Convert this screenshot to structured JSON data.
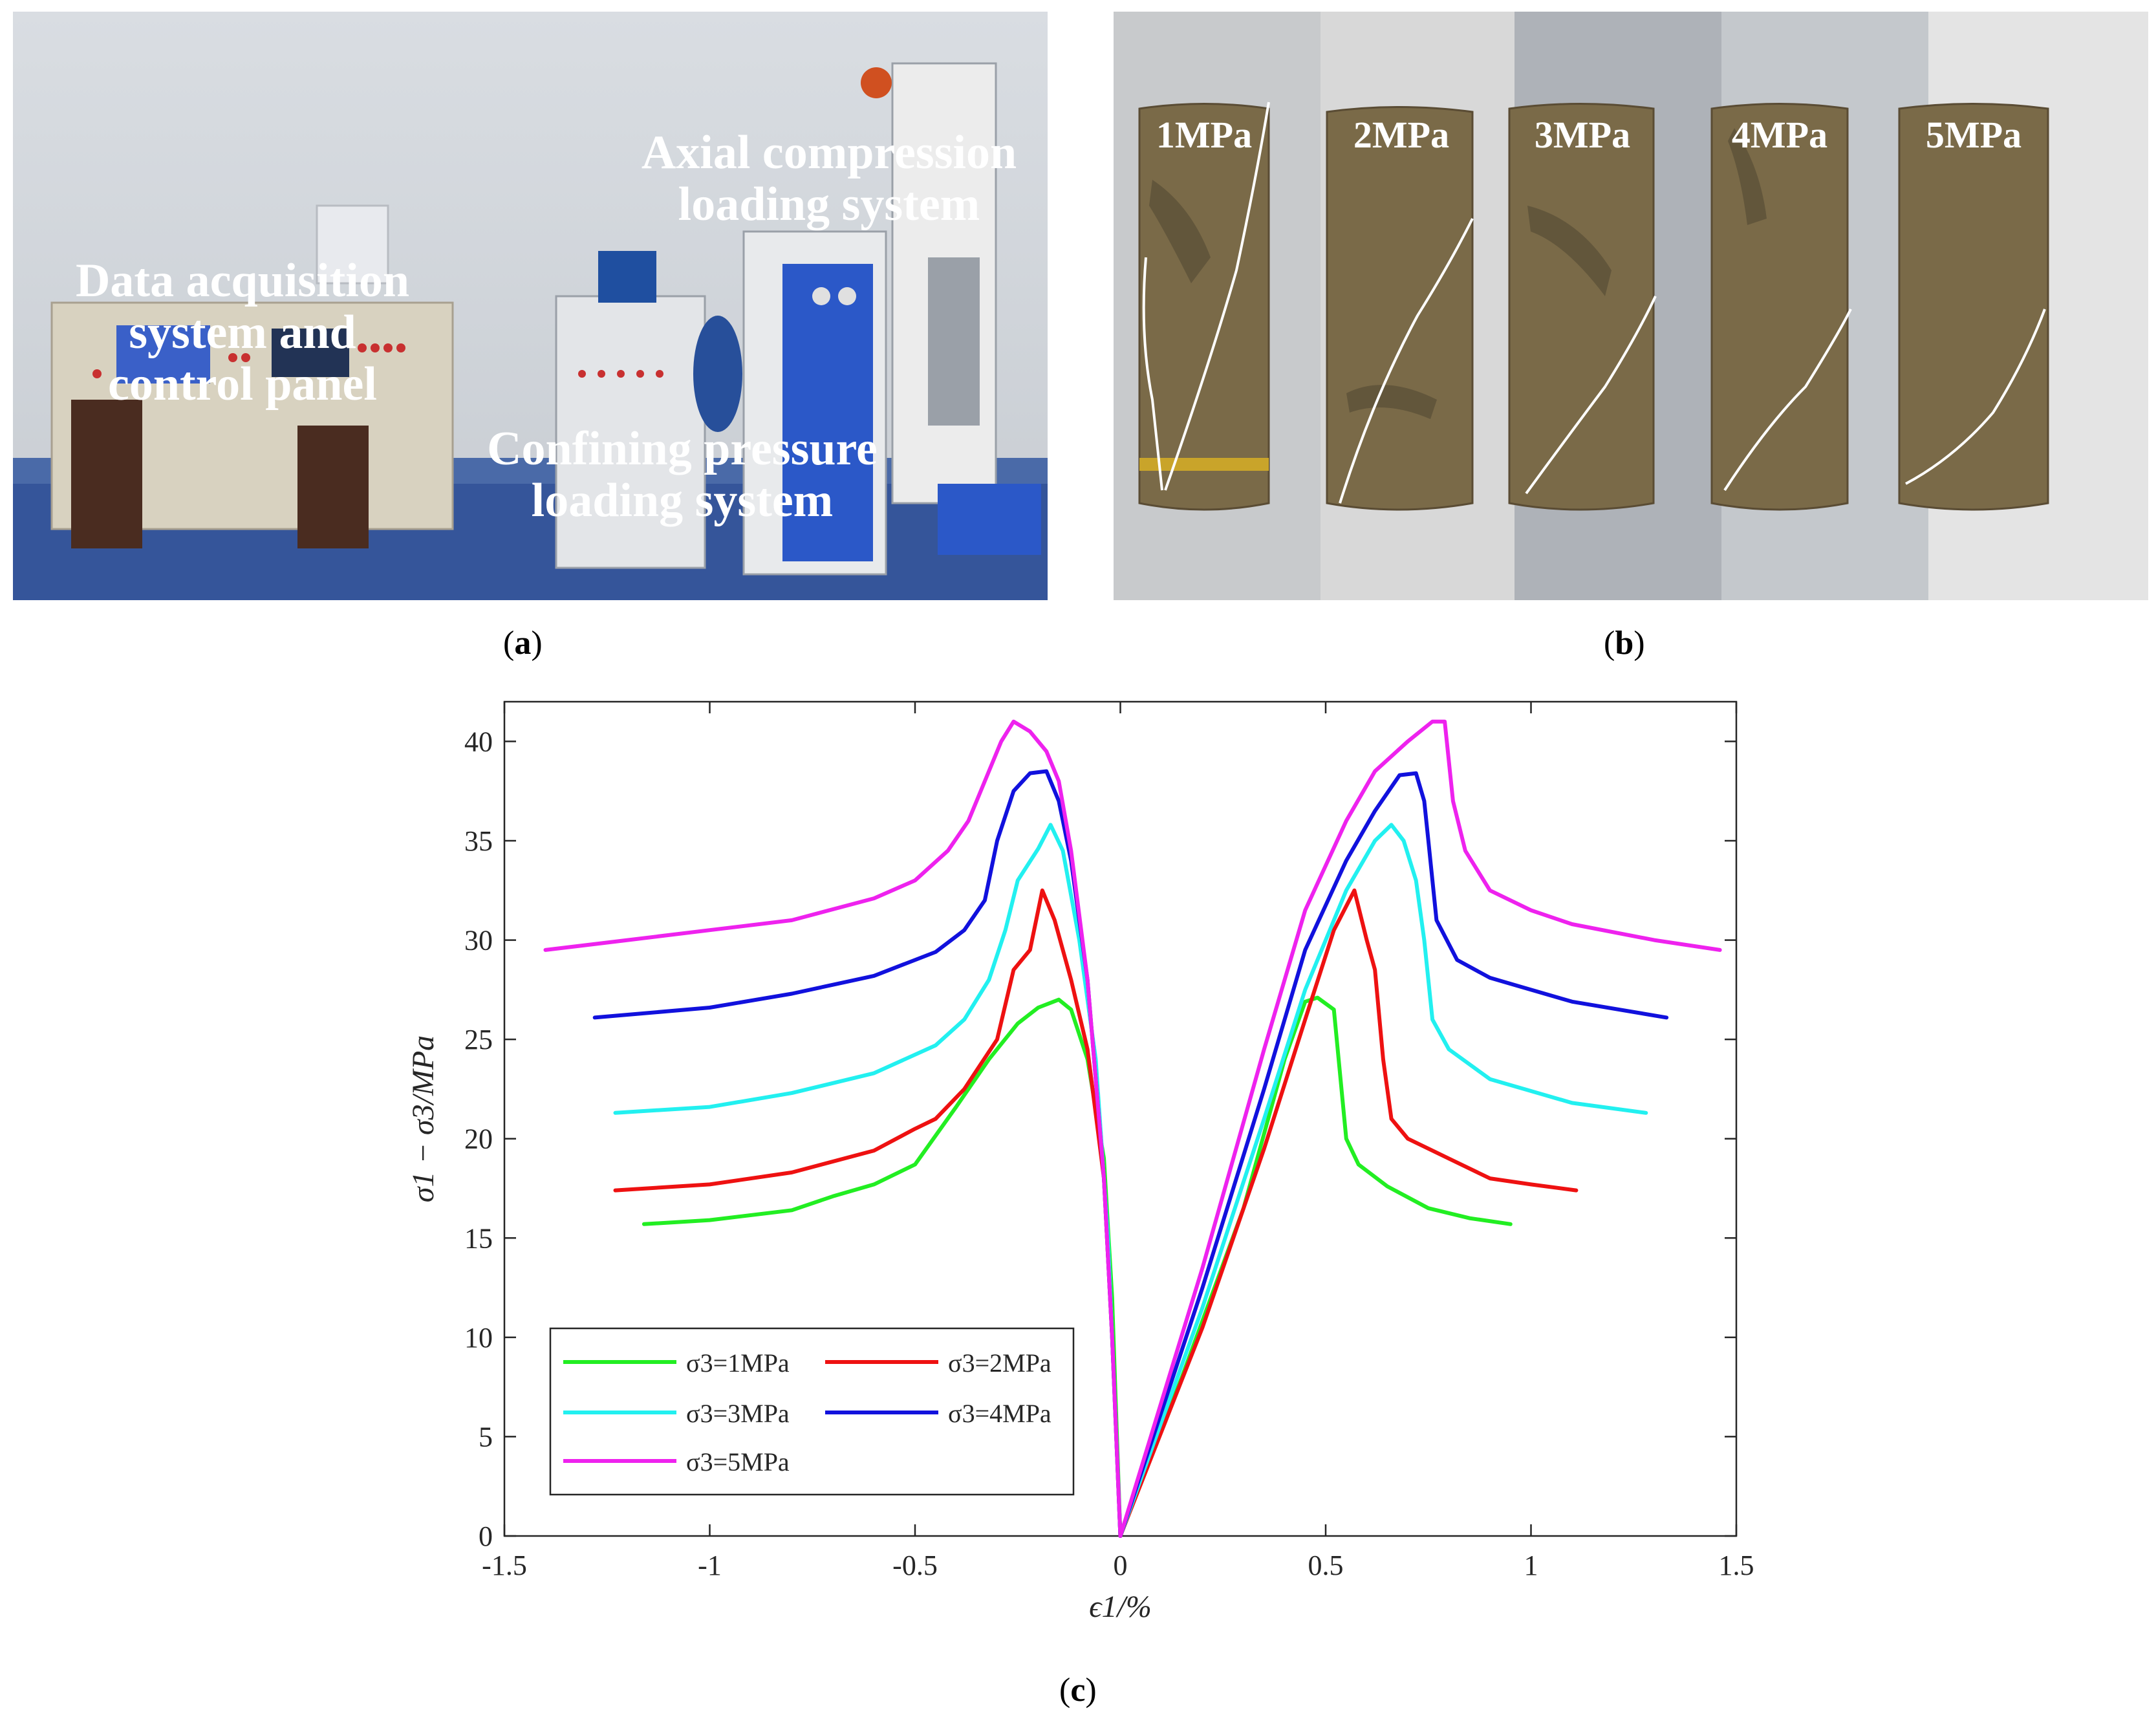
{
  "panels": {
    "a": {
      "caption_letter": "a",
      "labels": {
        "data_acq": [
          "Data acquisition",
          "system and",
          "control panel"
        ],
        "axial": [
          "Axial compression",
          "loading system"
        ],
        "confining": [
          "Confining pressure",
          "loading system"
        ]
      }
    },
    "b": {
      "caption_letter": "b",
      "specimens": [
        "1MPa",
        "2MPa",
        "3MPa",
        "4MPa",
        "5MPa"
      ]
    },
    "c": {
      "caption_letter": "c"
    }
  },
  "colors": {
    "s1": "#22ee22",
    "s2": "#ee1111",
    "s3": "#22f0f0",
    "s4": "#1111dd",
    "s5": "#ee22ee"
  },
  "chart_data": {
    "type": "line",
    "xlabel": "ϵ1/%",
    "ylabel": "σ1 − σ3/MPa",
    "xlim": [
      -1.5,
      1.5
    ],
    "ylim": [
      0,
      42
    ],
    "xticks": [
      "-1.5",
      "-1",
      "-0.5",
      "0",
      "0.5",
      "1",
      "1.5"
    ],
    "yticks": [
      "0",
      "5",
      "10",
      "15",
      "20",
      "25",
      "30",
      "35",
      "40"
    ],
    "legend_position": "bottom-left",
    "series": [
      {
        "name": "σ3=1MPa",
        "color_key": "s1",
        "points": [
          [
            -1.16,
            15.7
          ],
          [
            -1.0,
            15.9
          ],
          [
            -0.8,
            16.4
          ],
          [
            -0.7,
            17.1
          ],
          [
            -0.6,
            17.7
          ],
          [
            -0.5,
            18.7
          ],
          [
            -0.4,
            21.6
          ],
          [
            -0.32,
            24.0
          ],
          [
            -0.25,
            25.8
          ],
          [
            -0.2,
            26.6
          ],
          [
            -0.15,
            27.0
          ],
          [
            -0.12,
            26.5
          ],
          [
            -0.08,
            24.0
          ],
          [
            -0.04,
            19.0
          ],
          [
            -0.02,
            12.0
          ],
          [
            0,
            0
          ],
          [
            0.15,
            8.0
          ],
          [
            0.3,
            16.5
          ],
          [
            0.4,
            24.0
          ],
          [
            0.45,
            26.9
          ],
          [
            0.48,
            27.1
          ],
          [
            0.52,
            26.5
          ],
          [
            0.55,
            20.0
          ],
          [
            0.58,
            18.7
          ],
          [
            0.65,
            17.6
          ],
          [
            0.75,
            16.5
          ],
          [
            0.85,
            16.0
          ],
          [
            0.95,
            15.7
          ]
        ]
      },
      {
        "name": "σ3=2MPa",
        "color_key": "s2",
        "points": [
          [
            -1.23,
            17.4
          ],
          [
            -1.0,
            17.7
          ],
          [
            -0.8,
            18.3
          ],
          [
            -0.6,
            19.4
          ],
          [
            -0.5,
            20.5
          ],
          [
            -0.45,
            21.0
          ],
          [
            -0.38,
            22.5
          ],
          [
            -0.3,
            25.0
          ],
          [
            -0.26,
            28.5
          ],
          [
            -0.22,
            29.5
          ],
          [
            -0.19,
            32.5
          ],
          [
            -0.16,
            31.0
          ],
          [
            -0.12,
            28.0
          ],
          [
            -0.08,
            24.5
          ],
          [
            -0.04,
            18.0
          ],
          [
            -0.02,
            10.0
          ],
          [
            0,
            0
          ],
          [
            0.2,
            10.5
          ],
          [
            0.35,
            19.5
          ],
          [
            0.45,
            26.0
          ],
          [
            0.52,
            30.5
          ],
          [
            0.57,
            32.5
          ],
          [
            0.6,
            30.0
          ],
          [
            0.62,
            28.5
          ],
          [
            0.64,
            24.0
          ],
          [
            0.66,
            21.0
          ],
          [
            0.7,
            20.0
          ],
          [
            0.8,
            19.0
          ],
          [
            0.9,
            18.0
          ],
          [
            1.0,
            17.7
          ],
          [
            1.11,
            17.4
          ]
        ]
      },
      {
        "name": "σ3=3MPa",
        "color_key": "s3",
        "points": [
          [
            -1.23,
            21.3
          ],
          [
            -1.0,
            21.6
          ],
          [
            -0.8,
            22.3
          ],
          [
            -0.6,
            23.3
          ],
          [
            -0.45,
            24.7
          ],
          [
            -0.38,
            26.0
          ],
          [
            -0.32,
            28.0
          ],
          [
            -0.28,
            30.5
          ],
          [
            -0.25,
            33.0
          ],
          [
            -0.2,
            34.6
          ],
          [
            -0.17,
            35.8
          ],
          [
            -0.14,
            34.5
          ],
          [
            -0.1,
            30.0
          ],
          [
            -0.06,
            24.0
          ],
          [
            -0.03,
            15.0
          ],
          [
            -0.01,
            5.0
          ],
          [
            0,
            0
          ],
          [
            0.2,
            11.5
          ],
          [
            0.35,
            21.0
          ],
          [
            0.45,
            27.5
          ],
          [
            0.55,
            32.5
          ],
          [
            0.62,
            35.0
          ],
          [
            0.66,
            35.8
          ],
          [
            0.69,
            35.0
          ],
          [
            0.72,
            33.0
          ],
          [
            0.74,
            30.0
          ],
          [
            0.76,
            26.0
          ],
          [
            0.8,
            24.5
          ],
          [
            0.9,
            23.0
          ],
          [
            1.0,
            22.4
          ],
          [
            1.1,
            21.8
          ],
          [
            1.28,
            21.3
          ]
        ]
      },
      {
        "name": "σ3=4MPa",
        "color_key": "s4",
        "points": [
          [
            -1.28,
            26.1
          ],
          [
            -1.0,
            26.6
          ],
          [
            -0.8,
            27.3
          ],
          [
            -0.6,
            28.2
          ],
          [
            -0.45,
            29.4
          ],
          [
            -0.38,
            30.5
          ],
          [
            -0.33,
            32.0
          ],
          [
            -0.3,
            35.0
          ],
          [
            -0.26,
            37.5
          ],
          [
            -0.22,
            38.4
          ],
          [
            -0.18,
            38.5
          ],
          [
            -0.15,
            37.0
          ],
          [
            -0.12,
            34.0
          ],
          [
            -0.08,
            28.0
          ],
          [
            -0.04,
            18.0
          ],
          [
            -0.02,
            10.0
          ],
          [
            0,
            0
          ],
          [
            0.2,
            12.5
          ],
          [
            0.35,
            22.5
          ],
          [
            0.45,
            29.5
          ],
          [
            0.55,
            34.0
          ],
          [
            0.62,
            36.5
          ],
          [
            0.68,
            38.3
          ],
          [
            0.72,
            38.4
          ],
          [
            0.74,
            37.0
          ],
          [
            0.75,
            35.0
          ],
          [
            0.77,
            31.0
          ],
          [
            0.82,
            29.0
          ],
          [
            0.9,
            28.1
          ],
          [
            1.0,
            27.5
          ],
          [
            1.1,
            26.9
          ],
          [
            1.33,
            26.1
          ]
        ]
      },
      {
        "name": "σ3=5MPa",
        "color_key": "s5",
        "points": [
          [
            -1.4,
            29.5
          ],
          [
            -1.2,
            30.0
          ],
          [
            -1.0,
            30.5
          ],
          [
            -0.8,
            31.0
          ],
          [
            -0.6,
            32.1
          ],
          [
            -0.5,
            33.0
          ],
          [
            -0.42,
            34.5
          ],
          [
            -0.37,
            36.0
          ],
          [
            -0.33,
            38.0
          ],
          [
            -0.29,
            40.0
          ],
          [
            -0.26,
            41.0
          ],
          [
            -0.22,
            40.5
          ],
          [
            -0.18,
            39.5
          ],
          [
            -0.15,
            38.0
          ],
          [
            -0.12,
            34.5
          ],
          [
            -0.08,
            28.0
          ],
          [
            -0.04,
            18.0
          ],
          [
            -0.02,
            10.0
          ],
          [
            0,
            0
          ],
          [
            0.2,
            13.5
          ],
          [
            0.35,
            24.5
          ],
          [
            0.45,
            31.5
          ],
          [
            0.55,
            36.0
          ],
          [
            0.62,
            38.5
          ],
          [
            0.7,
            40.0
          ],
          [
            0.76,
            41.0
          ],
          [
            0.79,
            41.0
          ],
          [
            0.81,
            37.0
          ],
          [
            0.84,
            34.5
          ],
          [
            0.9,
            32.5
          ],
          [
            1.0,
            31.5
          ],
          [
            1.1,
            30.8
          ],
          [
            1.3,
            30.0
          ],
          [
            1.46,
            29.5
          ]
        ]
      }
    ]
  }
}
